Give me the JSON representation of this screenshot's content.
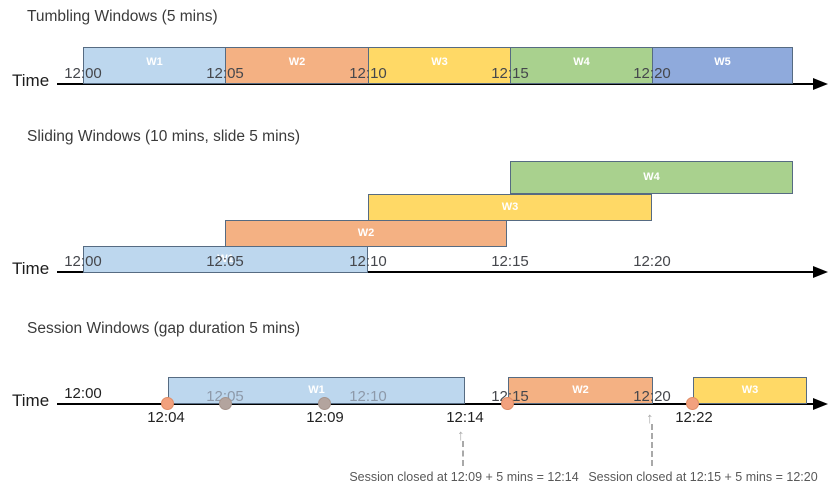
{
  "tumbling": {
    "title": "Tumbling Windows (5 mins)",
    "time_label": "Time",
    "ticks": [
      "12:00",
      "12:05",
      "12:10",
      "12:15",
      "12:20"
    ],
    "windows": [
      {
        "label": "W1",
        "color": "#BDD7EE"
      },
      {
        "label": "W2",
        "color": "#F4B183"
      },
      {
        "label": "W3",
        "color": "#FFD966"
      },
      {
        "label": "W4",
        "color": "#A9D18E"
      },
      {
        "label": "W5",
        "color": "#8FAADC"
      }
    ]
  },
  "sliding": {
    "title": "Sliding Windows (10 mins, slide 5 mins)",
    "time_label": "Time",
    "ticks": [
      "12:00",
      "12:05",
      "12:10",
      "12:15",
      "12:20"
    ],
    "windows": [
      {
        "label": "W1",
        "color": "#BDD7EE"
      },
      {
        "label": "W2",
        "color": "#F4B183"
      },
      {
        "label": "W3",
        "color": "#FFD966"
      },
      {
        "label": "W4",
        "color": "#A9D18E"
      }
    ]
  },
  "session": {
    "title": "Session Windows (gap duration 5 mins)",
    "time_label": "Time",
    "axis_start_label": "12:00",
    "ticks": [
      "12:05",
      "12:10",
      "12:15",
      "12:20"
    ],
    "windows": [
      {
        "label": "W1",
        "color": "#BDD7EE"
      },
      {
        "label": "W2",
        "color": "#F4B183"
      },
      {
        "label": "W3",
        "color": "#FFD966"
      }
    ],
    "event_time_labels": [
      "12:04",
      "12:09",
      "12:14",
      "12:22"
    ],
    "annotations": [
      "Session closed at 12:09 + 5 mins = 12:14",
      "Session closed at 12:15 + 5 mins = 12:20"
    ]
  },
  "colors": {
    "bar_border": "#566B82",
    "event_dot": "#F2A17E",
    "event_dot_border": "#E08D66",
    "event_dot_muted": "#B3A49E",
    "event_dot_muted_border": "#A6948C",
    "axis": "#000000",
    "tick_text": "#45474C",
    "tick_text_muted": "#8D99A9",
    "annotation_text": "#595959"
  }
}
